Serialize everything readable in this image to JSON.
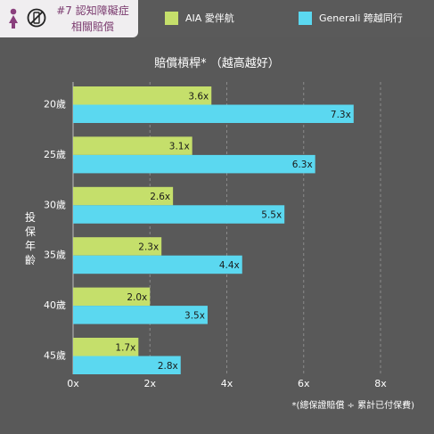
{
  "header": {
    "badge_line1": "#7 認知障礙症",
    "badge_line2": "相關賠償",
    "icons": [
      "person-female-icon",
      "no-phone-icon"
    ]
  },
  "legend": [
    {
      "label": "AIA 愛伴航",
      "color": "#c5df6b"
    },
    {
      "label": "Generali 跨越同行",
      "color": "#5bd8f0"
    }
  ],
  "footnote": "*(總保證賠償 ÷ 累計已付保費)",
  "chart_data": {
    "type": "bar",
    "orientation": "horizontal",
    "title": "賠償槓桿*  （越高越好）",
    "ylabel": "投保年齡",
    "xlabel": "",
    "categories": [
      "20歲",
      "25歲",
      "30歲",
      "35歲",
      "40歲",
      "45歲"
    ],
    "series": [
      {
        "name": "AIA 愛伴航",
        "color": "#c5df6b",
        "values": [
          3.6,
          3.1,
          2.6,
          2.3,
          2.0,
          1.7
        ],
        "labels": [
          "3.6x",
          "3.1x",
          "2.6x",
          "2.3x",
          "2.0x",
          "1.7x"
        ]
      },
      {
        "name": "Generali 跨越同行",
        "color": "#5bd8f0",
        "values": [
          7.3,
          6.3,
          5.5,
          4.4,
          3.5,
          2.8
        ],
        "labels": [
          "7.3x",
          "6.3x",
          "5.5x",
          "4.4x",
          "3.5x",
          "2.8x"
        ]
      }
    ],
    "xlim": [
      0,
      8
    ],
    "xticks": [
      0,
      2,
      4,
      6,
      8
    ],
    "xtick_labels": [
      "0x",
      "2x",
      "4x",
      "6x",
      "8x"
    ],
    "grid": "vertical dashed"
  }
}
